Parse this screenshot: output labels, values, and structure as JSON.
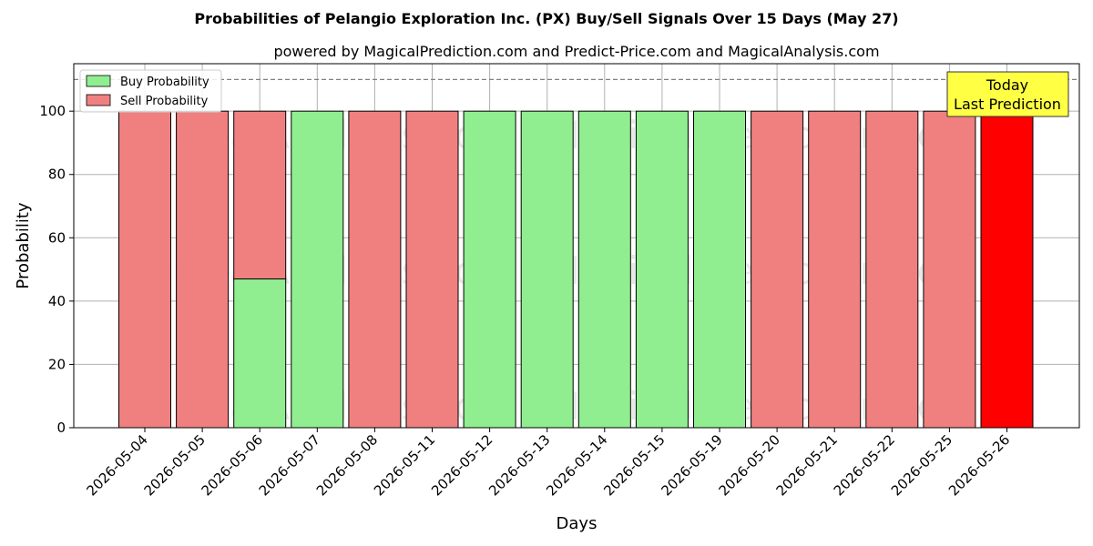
{
  "chart_data": {
    "type": "bar",
    "title": "Probabilities of Pelangio Exploration Inc. (PX) Buy/Sell Signals Over 15 Days (May 27)",
    "subtitle": "powered by MagicalPrediction.com and Predict-Price.com and MagicalAnalysis.com",
    "xlabel": "Days",
    "ylabel": "Probability",
    "ylim": [
      0,
      115
    ],
    "yticks": [
      0,
      20,
      40,
      60,
      80,
      100
    ],
    "categories": [
      "2026-05-04",
      "2026-05-05",
      "2026-05-06",
      "2026-05-07",
      "2026-05-08",
      "2026-05-11",
      "2026-05-12",
      "2026-05-13",
      "2026-05-14",
      "2026-05-15",
      "2026-05-19",
      "2026-05-20",
      "2026-05-21",
      "2026-05-22",
      "2026-05-25",
      "2026-05-26"
    ],
    "series": [
      {
        "name": "Buy Probability",
        "values": [
          0,
          0,
          47,
          100,
          0,
          0,
          100,
          100,
          100,
          100,
          100,
          0,
          0,
          0,
          0,
          0
        ]
      },
      {
        "name": "Sell Probability",
        "values": [
          100,
          100,
          53,
          0,
          100,
          100,
          0,
          0,
          0,
          0,
          0,
          100,
          100,
          100,
          100,
          100
        ]
      }
    ],
    "reference_line": 110,
    "highlight_index": 15,
    "grid": true,
    "legend_position": "top-left",
    "annotation": [
      "Today",
      "Last Prediction"
    ],
    "watermarks": [
      "MagicalAnalysis.com",
      "MagicalPrediction.com"
    ],
    "colors": {
      "buy": "#90ee90",
      "sell": "#f08080",
      "today": "#ff0000",
      "annotation_bg": "#ffff44",
      "grid": "#b0b0b0",
      "reference": "#808080"
    }
  }
}
